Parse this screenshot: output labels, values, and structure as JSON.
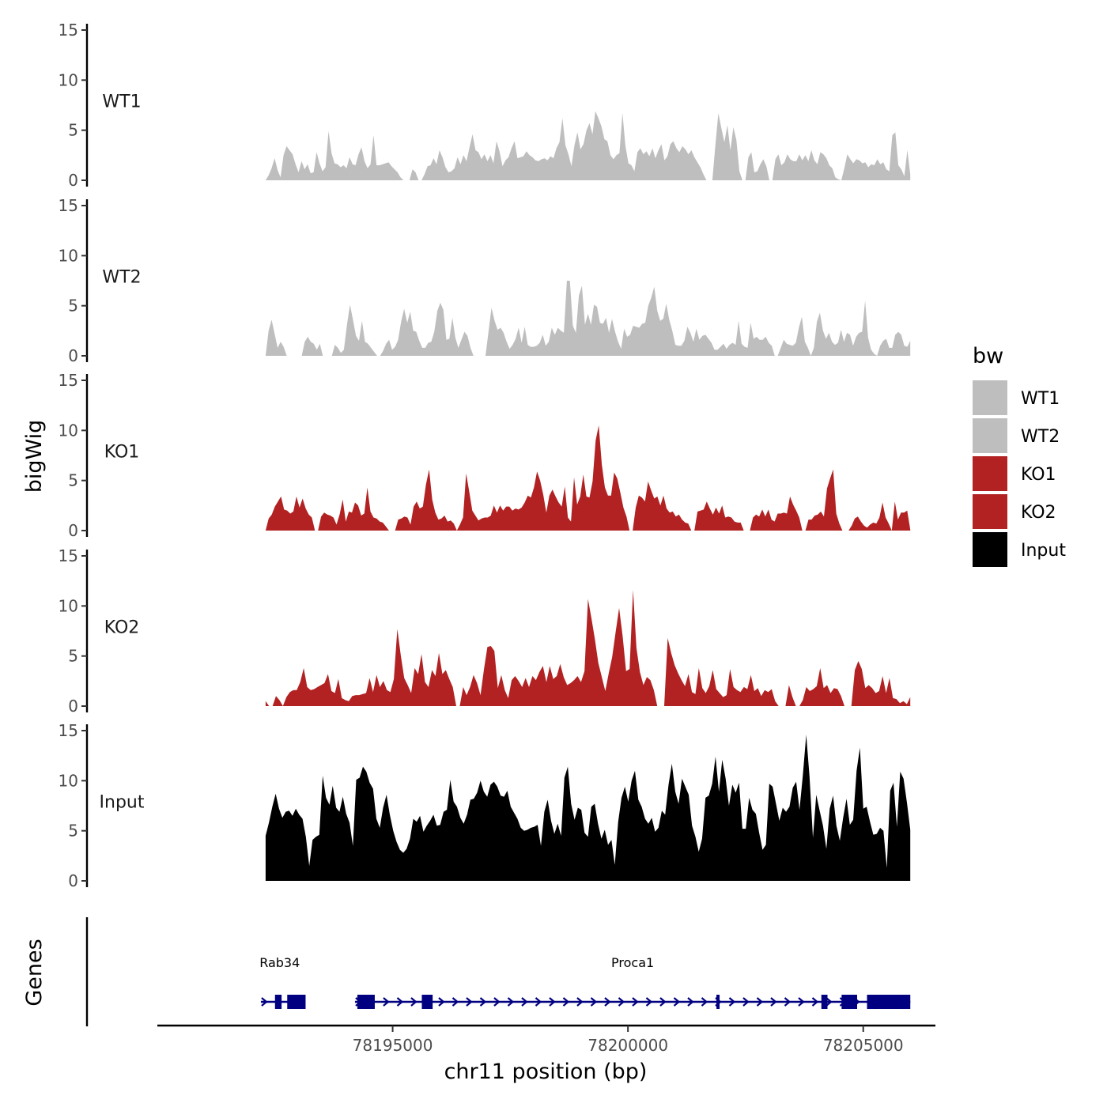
{
  "chart_data": {
    "type": "area",
    "chromosome": "chr11",
    "xlabel": "chr11 position (bp)",
    "ylabel": "bigWig",
    "genes_label": "Genes",
    "xlim": [
      78190000,
      78206500
    ],
    "data_start": 78192300,
    "data_end": 78206000,
    "ylim": [
      0,
      15
    ],
    "yticks": [
      0,
      5,
      10,
      15
    ],
    "xticks": [
      78195000,
      78200000,
      78205000
    ],
    "xtick_labels": [
      "78195000",
      "78200000",
      "78205000"
    ],
    "legend": {
      "title": "bw",
      "entries": [
        {
          "label": "WT1",
          "color": "#BEBEBE"
        },
        {
          "label": "WT2",
          "color": "#BEBEBE"
        },
        {
          "label": "KO1",
          "color": "#B22222"
        },
        {
          "label": "KO2",
          "color": "#B22222"
        },
        {
          "label": "Input",
          "color": "#000000"
        }
      ]
    },
    "series": [
      {
        "name": "WT1",
        "color": "#BEBEBE",
        "values": [
          0,
          0.5,
          1.2,
          2.2,
          1.0,
          0.3,
          2.5,
          3.4,
          3.0,
          2.6,
          1.6,
          0.8,
          1.9,
          1.1,
          1.6,
          0.7,
          0.8,
          2.8,
          1.7,
          0.9,
          1.3,
          4.9,
          2.7,
          1.7,
          1.6,
          1.3,
          1.5,
          1.2,
          2.3,
          1.6,
          1.5,
          2.6,
          3.3,
          1.9,
          1.2,
          1.6,
          4.5,
          1.5,
          1.5,
          1.6,
          1.7,
          1.8,
          1.4,
          1.1,
          0.8,
          0.3,
          0,
          0,
          0,
          1.1,
          0.8,
          0,
          0,
          0.6,
          1.4,
          1.5,
          2.2,
          1.6,
          3.0,
          2.3,
          1.3,
          0.8,
          0.9,
          1.2,
          2.3,
          1.6,
          2.5,
          1.9,
          3.3,
          4.6,
          3.0,
          2.8,
          2.1,
          2.6,
          1.9,
          2.5,
          1.7,
          3.9,
          2.9,
          1.4,
          2.0,
          2.3,
          3.2,
          3.9,
          2.2,
          2.3,
          2.4,
          2.9,
          2.5,
          2.3,
          2.0,
          1.9,
          2.1,
          2.2,
          2.0,
          2.4,
          2.2,
          3.2,
          3.8,
          6.2,
          3.5,
          2.6,
          1.4,
          3.5,
          4.8,
          3.1,
          3.6,
          5.0,
          5.7,
          4.6,
          6.9,
          6.2,
          5.4,
          4.1,
          3.9,
          2.5,
          2.1,
          2.5,
          2.7,
          6.7,
          3.4,
          1.7,
          1.5,
          0.9,
          2.8,
          3.2,
          2.6,
          2.9,
          2.4,
          3.2,
          2.2,
          3.0,
          3.6,
          2.0,
          2.4,
          3.6,
          3.9,
          3.2,
          2.8,
          3.4,
          3.1,
          2.6,
          3.0,
          2.3,
          1.8,
          1.3,
          0.6,
          0,
          0,
          0,
          3.5,
          6.7,
          5.2,
          3.8,
          5.5,
          3.0,
          5.3,
          4.0,
          0.9,
          0,
          0,
          2.3,
          2.8,
          0.8,
          0.9,
          1.6,
          2.1,
          1.4,
          0,
          0,
          2.1,
          2.6,
          1.5,
          1.8,
          2.6,
          2.1,
          1.9,
          1.9,
          2.6,
          2.0,
          2.5,
          1.9,
          3.0,
          2.0,
          1.6,
          2.8,
          2.6,
          2.2,
          1.5,
          1.2,
          0.3,
          0.1,
          0,
          1.2,
          2.6,
          2.1,
          1.7,
          2.1,
          2.0,
          1.7,
          1.8,
          1.3,
          1.6,
          1.5,
          2.1,
          1.6,
          1.8,
          1.1,
          0.9,
          4.5,
          4.8,
          1.5,
          1.1,
          0.4,
          3.0,
          0.6
        ]
      },
      {
        "name": "WT2",
        "color": "#BEBEBE",
        "values": [
          0,
          2.5,
          3.6,
          2.2,
          0.8,
          1.4,
          0.9,
          0,
          0,
          0,
          0,
          0,
          0,
          1.4,
          1.9,
          1.4,
          1.2,
          0.6,
          1.2,
          0,
          0,
          0,
          0,
          1.1,
          0.8,
          0.3,
          0.6,
          3.1,
          5.1,
          3.6,
          2.0,
          1.5,
          3.5,
          1.4,
          1.2,
          0.8,
          0.4,
          0,
          0,
          0.5,
          1.2,
          1.6,
          0.6,
          0.9,
          1.6,
          3.4,
          4.7,
          3.3,
          4.4,
          2.5,
          2.4,
          1.5,
          0.8,
          0.8,
          1.3,
          1.4,
          2.4,
          4.5,
          5.3,
          4.6,
          1.6,
          1.7,
          3.8,
          1.8,
          0.8,
          1.6,
          2.4,
          2.0,
          0.8,
          0,
          0,
          0,
          0,
          0,
          2.4,
          4.8,
          3.5,
          2.6,
          2.8,
          2.3,
          1.4,
          0.7,
          1.1,
          1.7,
          2.8,
          1.3,
          2.9,
          1.1,
          0.9,
          0.9,
          1.0,
          1.3,
          2.1,
          1.0,
          1.4,
          2.8,
          2.1,
          2.8,
          2.5,
          2.3,
          7.5,
          7.5,
          3.0,
          2.3,
          6.0,
          7.0,
          3.1,
          4.2,
          3.1,
          5.1,
          4.9,
          3.3,
          3.2,
          3.8,
          2.3,
          3.7,
          2.4,
          1.4,
          0.7,
          2.7,
          1.9,
          2.1,
          3.0,
          2.9,
          2.8,
          3.2,
          3.3,
          5.0,
          5.8,
          6.9,
          4.5,
          3.5,
          3.7,
          5.2,
          3.6,
          2.5,
          1.1,
          1.0,
          1.0,
          1.5,
          2.9,
          2.3,
          1.4,
          2.7,
          1.6,
          2.0,
          2.1,
          1.7,
          1.3,
          0.6,
          0.6,
          0.9,
          1.2,
          0.7,
          1.1,
          1.3,
          1.1,
          3.5,
          1.2,
          0.9,
          0.8,
          3.3,
          1.7,
          1.9,
          1.6,
          1.6,
          1.9,
          1.3,
          1.0,
          0,
          0,
          0.8,
          1.6,
          1.2,
          1.1,
          1.0,
          1.3,
          2.8,
          3.9,
          1.4,
          0.8,
          0,
          0.8,
          3.4,
          4.3,
          2.5,
          1.7,
          2.3,
          1.4,
          1.1,
          1.3,
          2.6,
          1.4,
          2.3,
          2.1,
          1.0,
          1.9,
          2.3,
          2.4,
          5.5,
          1.8,
          0.6,
          0.2,
          0,
          1.0,
          1.5,
          1.7,
          0.8,
          0.8,
          2.1,
          2.4,
          2.1,
          1.0,
          0.9,
          1.5
        ]
      },
      {
        "name": "KO1",
        "color": "#B22222",
        "values": [
          0,
          1.2,
          1.6,
          2.4,
          2.9,
          3.4,
          2.1,
          2.0,
          1.7,
          1.9,
          3.4,
          2.3,
          3.2,
          2.2,
          1.6,
          1.3,
          0,
          0,
          1.4,
          1.8,
          1.6,
          1.5,
          1.3,
          0.6,
          1.6,
          3.1,
          0.9,
          1.9,
          1.8,
          2.8,
          2.5,
          1.5,
          1.7,
          4.3,
          1.9,
          1.3,
          1.2,
          0.9,
          0.8,
          0.4,
          0,
          0,
          0,
          1.1,
          1.2,
          1.4,
          1.3,
          0.6,
          2.4,
          2.9,
          2.2,
          2.4,
          4.6,
          6.1,
          3.1,
          1.8,
          1.1,
          1.2,
          1.5,
          0.9,
          1.0,
          0.7,
          0,
          0.6,
          1.3,
          5.7,
          3.9,
          2.0,
          1.5,
          1.0,
          1.2,
          1.3,
          1.3,
          1.5,
          2.5,
          1.8,
          2.5,
          2.0,
          2.4,
          2.4,
          2.0,
          2.2,
          2.1,
          2.3,
          2.8,
          3.5,
          3.3,
          4.3,
          5.9,
          5.0,
          3.6,
          1.8,
          3.5,
          4.1,
          3.4,
          2.8,
          2.4,
          4.4,
          1.3,
          0.9,
          5.3,
          2.6,
          3.4,
          5.6,
          3.4,
          3.3,
          4.9,
          9.0,
          10.5,
          6.6,
          4.3,
          3.5,
          3.5,
          5.8,
          5.2,
          3.8,
          2.3,
          1.4,
          0,
          0,
          2.3,
          3.5,
          3.3,
          2.9,
          4.9,
          4.0,
          3.2,
          3.4,
          2.5,
          3.5,
          2.2,
          1.8,
          1.9,
          1.4,
          1.6,
          1.1,
          0.8,
          0.7,
          0,
          0,
          1.9,
          2.0,
          2.1,
          2.9,
          2.2,
          1.6,
          2.3,
          1.7,
          2.5,
          1.3,
          1.4,
          1.3,
          0.9,
          0.8,
          0.8,
          0,
          0,
          0,
          1.3,
          1.6,
          1.4,
          2.1,
          1.4,
          2.1,
          1.1,
          0.9,
          1.7,
          1.7,
          1.8,
          1.7,
          3.4,
          2.6,
          2.0,
          1.3,
          0,
          0,
          1.1,
          1.1,
          1.5,
          1.6,
          1.9,
          1.4,
          4.2,
          5.2,
          6.1,
          1.7,
          0.7,
          0,
          0,
          0,
          0.5,
          1.2,
          1.4,
          0.9,
          0.5,
          0.3,
          0.6,
          0.8,
          0.7,
          1.3,
          2.8,
          1.3,
          0.7,
          0,
          2.9,
          1.1,
          1.8,
          1.8,
          2.0,
          0.1
        ]
      },
      {
        "name": "KO2",
        "color": "#B22222",
        "values": [
          0.5,
          0,
          0,
          1.0,
          0.6,
          0,
          0.9,
          1.4,
          1.6,
          1.6,
          2.4,
          3.8,
          1.9,
          1.6,
          1.7,
          1.9,
          2.1,
          2.3,
          3.2,
          1.5,
          1.3,
          2.7,
          0.8,
          0.6,
          0.5,
          1.0,
          1.1,
          1.1,
          1.2,
          1.3,
          2.8,
          1.4,
          3.1,
          1.9,
          2.5,
          1.6,
          1.4,
          2.7,
          7.7,
          5.1,
          2.8,
          2.1,
          1.3,
          3.8,
          3.2,
          5.2,
          2.4,
          1.9,
          3.6,
          3.0,
          5.3,
          3.2,
          3.6,
          2.7,
          1.9,
          0,
          0,
          1.9,
          1.1,
          1.9,
          3.1,
          2.3,
          1.1,
          3.7,
          5.9,
          6.0,
          5.5,
          1.8,
          3.1,
          1.6,
          0.8,
          2.6,
          3.0,
          2.5,
          1.9,
          2.8,
          1.9,
          3.0,
          2.6,
          3.4,
          4.0,
          2.4,
          4.0,
          2.7,
          3.0,
          4.2,
          2.9,
          2.1,
          2.3,
          2.6,
          3.0,
          2.4,
          3.5,
          10.7,
          8.8,
          6.7,
          4.3,
          2.9,
          1.5,
          3.3,
          4.9,
          7.4,
          9.8,
          7.0,
          3.5,
          3.7,
          11.6,
          5.8,
          3.4,
          2.1,
          2.9,
          2.6,
          1.6,
          0,
          0,
          0,
          6.8,
          5.3,
          4.1,
          3.3,
          2.6,
          2.0,
          3.2,
          1.4,
          1.2,
          3.8,
          1.8,
          1.3,
          2.0,
          3.6,
          1.7,
          1.3,
          0.9,
          1.1,
          3.7,
          1.9,
          1.6,
          1.4,
          1.9,
          1.7,
          3.1,
          1.5,
          1.8,
          1.0,
          1.6,
          1.4,
          1.7,
          0.5,
          0,
          0,
          0,
          2.1,
          0.9,
          0,
          0,
          0.6,
          1.9,
          1.5,
          1.7,
          2.0,
          3.8,
          1.8,
          2.1,
          1.3,
          1.8,
          1.7,
          1.0,
          0,
          0,
          0,
          3.6,
          4.5,
          3.7,
          1.8,
          2.1,
          1.8,
          1.3,
          1.5,
          3.0,
          1.3,
          2.8,
          0.8,
          0.7,
          0.3,
          0.5,
          0.2,
          0.9
        ]
      },
      {
        "name": "Input",
        "color": "#000000",
        "values": [
          4.5,
          5.8,
          7.4,
          8.7,
          7.2,
          6.3,
          6.9,
          7.0,
          6.5,
          7.2,
          6.6,
          6.2,
          4.4,
          1.5,
          4.1,
          4.4,
          4.6,
          10.5,
          8.3,
          7.6,
          9.5,
          7.3,
          6.9,
          8.4,
          6.7,
          5.8,
          3.5,
          10.1,
          10.3,
          11.4,
          10.9,
          9.8,
          9.2,
          6.2,
          5.3,
          7.3,
          8.6,
          6.6,
          5.0,
          3.9,
          3.1,
          2.8,
          3.2,
          4.2,
          6.2,
          5.9,
          6.5,
          4.9,
          5.5,
          6.0,
          6.6,
          5.5,
          5.6,
          6.9,
          7.1,
          10.1,
          7.9,
          7.4,
          6.3,
          5.7,
          6.6,
          8.1,
          8.2,
          8.8,
          10.0,
          8.9,
          8.4,
          9.6,
          9.9,
          9.4,
          8.5,
          8.4,
          9.0,
          7.4,
          6.8,
          6.2,
          5.3,
          5.0,
          5.1,
          5.3,
          5.4,
          5.6,
          3.5,
          6.9,
          8.1,
          6.0,
          4.7,
          5.7,
          4.5,
          10.3,
          11.4,
          7.7,
          6.1,
          7.3,
          7.1,
          4.8,
          4.4,
          7.4,
          7.7,
          5.7,
          4.2,
          5.1,
          3.6,
          4.1,
          1.6,
          5.9,
          8.3,
          9.4,
          7.9,
          10.0,
          11.0,
          8.1,
          7.4,
          6.2,
          5.7,
          6.3,
          4.9,
          5.3,
          7.0,
          6.6,
          9.6,
          11.7,
          8.9,
          7.7,
          10.2,
          9.4,
          8.6,
          5.5,
          4.4,
          2.9,
          4.2,
          8.3,
          8.5,
          9.7,
          12.4,
          8.9,
          12.1,
          10.2,
          7.5,
          9.6,
          8.8,
          9.8,
          5.2,
          5.2,
          8.3,
          7.1,
          6.7,
          4.8,
          3.1,
          3.6,
          9.7,
          9.4,
          7.7,
          6.0,
          7.3,
          6.9,
          7.4,
          9.3,
          9.9,
          7.1,
          10.5,
          14.6,
          10.4,
          4.3,
          8.6,
          7.0,
          5.5,
          3.2,
          7.2,
          8.5,
          5.5,
          4.0,
          6.3,
          8.2,
          5.6,
          6.1,
          11.0,
          13.3,
          7.2,
          7.4,
          5.9,
          4.6,
          4.7,
          5.3,
          5.0,
          1.3,
          9.0,
          9.8,
          5.4,
          10.9,
          10.2,
          7.8,
          5.1
        ]
      }
    ],
    "genes": [
      {
        "name": "Rab34",
        "start": 78192200,
        "end": 78193000,
        "strand": "+",
        "exons": [
          [
            78192500,
            78192640
          ],
          [
            78192760,
            78193150
          ]
        ]
      },
      {
        "name": "Proca1",
        "start": 78194200,
        "end": 78206000,
        "strand": "+",
        "exons": [
          [
            78194250,
            78194620
          ],
          [
            78195620,
            78195850
          ],
          [
            78201880,
            78201940
          ],
          [
            78204110,
            78204240
          ],
          [
            78204540,
            78204870
          ],
          [
            78205080,
            78206000
          ]
        ]
      }
    ],
    "gene_color": "#000080"
  }
}
